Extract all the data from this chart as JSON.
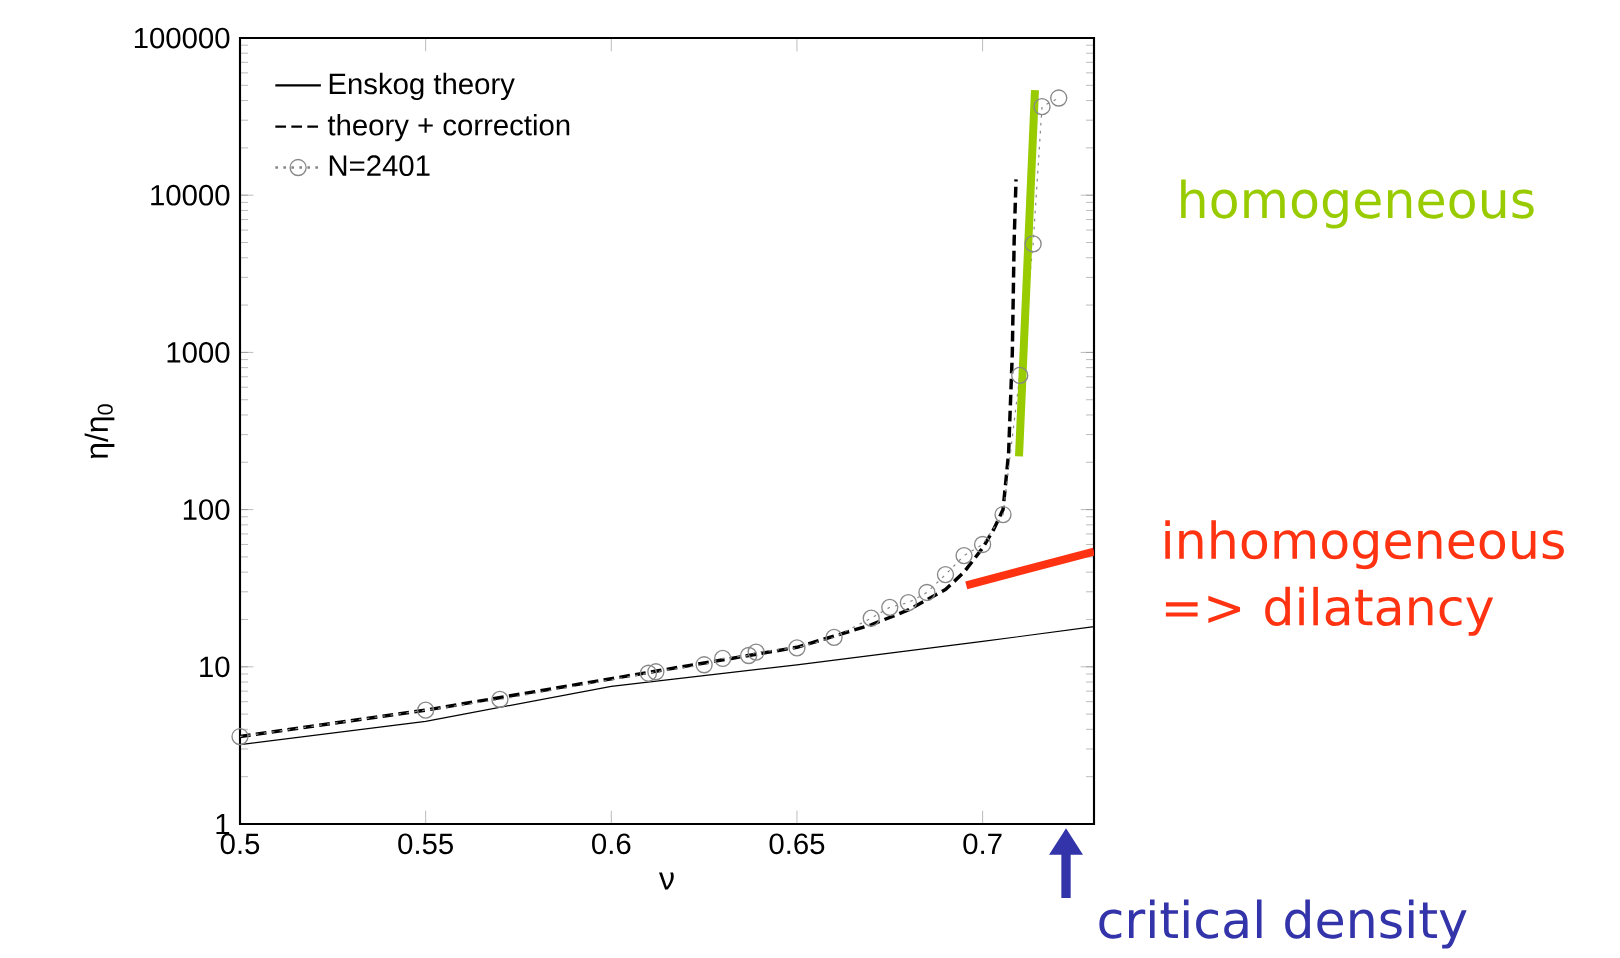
{
  "chart_data": {
    "type": "line",
    "xlabel": "ν",
    "ylabel": "η/η$_{0}$",
    "xlim": [
      0.5,
      0.73
    ],
    "xticks": [
      0.5,
      0.55,
      0.6,
      0.65,
      0.7
    ],
    "ylim": [
      1,
      100000
    ],
    "yticks": [
      1,
      10,
      100,
      1000,
      10000,
      100000
    ],
    "log": "y",
    "legend": "top left",
    "series": [
      {
        "name": "Enskog theory",
        "color": "#000000",
        "line_style": "solid",
        "marker": "none",
        "x": [
          0.5,
          0.55,
          0.6,
          0.65,
          0.7,
          0.73
        ],
        "values": [
          3.2,
          4.5,
          7.5,
          10.3,
          14.5,
          18
        ]
      },
      {
        "name": "theory + correction",
        "color": "#000000",
        "line_style": "dashed",
        "marker": "none",
        "x": [
          0.5,
          0.55,
          0.6,
          0.65,
          0.67,
          0.68,
          0.69,
          0.695,
          0.7,
          0.703,
          0.7055,
          0.707,
          0.708,
          0.7085,
          0.709
        ],
        "values": [
          3.6,
          5.3,
          8.4,
          13.3,
          18.5,
          23,
          31,
          40,
          57,
          75,
          100,
          229,
          990,
          5200,
          12600
        ]
      },
      {
        "name": "N=2401",
        "color": "#888888",
        "line_style": "dotted",
        "marker": "circle",
        "x": [
          0.5,
          0.55,
          0.57,
          0.61,
          0.612,
          0.625,
          0.63,
          0.637,
          0.639,
          0.65,
          0.66,
          0.67,
          0.675,
          0.68,
          0.685,
          0.69,
          0.695,
          0.7,
          0.7055,
          0.71,
          0.7136,
          0.716,
          0.7205
        ],
        "values": [
          3.6,
          5.3,
          6.2,
          9.1,
          9.3,
          10.3,
          11.3,
          11.8,
          12.4,
          13.2,
          15.4,
          20.4,
          23.9,
          25.6,
          29.7,
          38.6,
          51,
          60,
          93,
          714,
          4900,
          36600,
          41500
        ]
      },
      {
        "color": "#99cc00",
        "line_style": "solid",
        "marker": "none",
        "x": [
          0.7098,
          0.7141
        ],
        "values": [
          218,
          46600
        ]
      },
      {
        "color": "#ff3311",
        "line_style": "solid",
        "marker": "none",
        "x": [
          0.6956,
          0.73
        ],
        "values": [
          33,
          54
        ]
      }
    ],
    "annotations": [
      "homogeneous",
      "inhomogeneous => dilatancy",
      "critical density"
    ]
  }
}
